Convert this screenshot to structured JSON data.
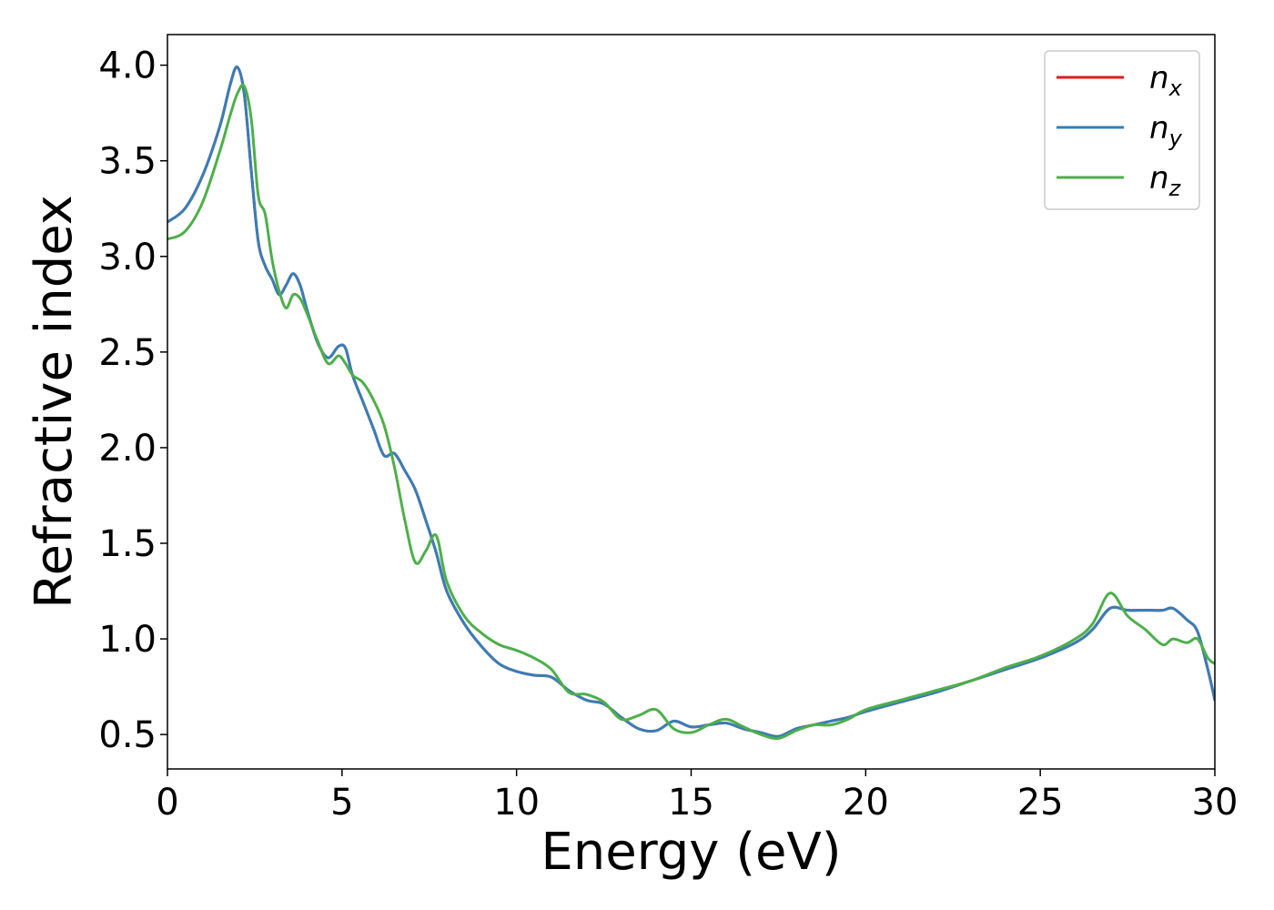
{
  "chart_data": {
    "type": "line",
    "xlabel": "Energy (eV)",
    "ylabel": "Refractive index",
    "xlim": [
      0,
      30
    ],
    "ylim": [
      0.32,
      4.16
    ],
    "xticks": [
      0,
      5,
      10,
      15,
      20,
      25,
      30
    ],
    "xtick_labels": [
      "0",
      "5",
      "10",
      "15",
      "20",
      "25",
      "30"
    ],
    "yticks": [
      0.5,
      1.0,
      1.5,
      2.0,
      2.5,
      3.0,
      3.5,
      4.0
    ],
    "ytick_labels": [
      "0.5",
      "1.0",
      "1.5",
      "2.0",
      "2.5",
      "3.0",
      "3.5",
      "4.0"
    ],
    "grid": false,
    "legend_position": "top-right",
    "series": [
      {
        "name": "n",
        "sub": "x",
        "color": "#e41a1c",
        "x": [
          0,
          0.5,
          1.0,
          1.5,
          1.8,
          2.0,
          2.2,
          2.4,
          2.6,
          2.8,
          3.0,
          3.2,
          3.4,
          3.6,
          3.8,
          4.0,
          4.3,
          4.6,
          4.9,
          5.1,
          5.3,
          5.6,
          5.9,
          6.2,
          6.5,
          6.8,
          7.1,
          7.4,
          7.7,
          8.0,
          8.5,
          9.0,
          9.5,
          10.0,
          10.5,
          11.0,
          11.5,
          12.0,
          12.5,
          13.0,
          13.5,
          14.0,
          14.5,
          15.0,
          15.5,
          16.0,
          16.5,
          17.0,
          17.5,
          18.0,
          18.5,
          19.0,
          19.5,
          20.0,
          21.0,
          22.0,
          23.0,
          24.0,
          25.0,
          26.0,
          26.5,
          27.0,
          27.5,
          28.0,
          28.5,
          28.8,
          29.2,
          29.5,
          29.8,
          30.0
        ],
        "y": [
          3.18,
          3.25,
          3.42,
          3.68,
          3.9,
          3.99,
          3.85,
          3.45,
          3.08,
          2.95,
          2.88,
          2.8,
          2.85,
          2.91,
          2.85,
          2.72,
          2.55,
          2.47,
          2.53,
          2.52,
          2.38,
          2.24,
          2.1,
          1.96,
          1.97,
          1.88,
          1.78,
          1.62,
          1.45,
          1.25,
          1.08,
          0.96,
          0.87,
          0.83,
          0.81,
          0.8,
          0.73,
          0.68,
          0.66,
          0.59,
          0.53,
          0.52,
          0.57,
          0.54,
          0.55,
          0.56,
          0.53,
          0.51,
          0.49,
          0.53,
          0.55,
          0.57,
          0.59,
          0.62,
          0.67,
          0.72,
          0.78,
          0.84,
          0.9,
          0.98,
          1.05,
          1.16,
          1.15,
          1.15,
          1.15,
          1.16,
          1.1,
          1.04,
          0.84,
          0.68
        ]
      },
      {
        "name": "n",
        "sub": "y",
        "color": "#377eb8",
        "x": [
          0,
          0.5,
          1.0,
          1.5,
          1.8,
          2.0,
          2.2,
          2.4,
          2.6,
          2.8,
          3.0,
          3.2,
          3.4,
          3.6,
          3.8,
          4.0,
          4.3,
          4.6,
          4.9,
          5.1,
          5.3,
          5.6,
          5.9,
          6.2,
          6.5,
          6.8,
          7.1,
          7.4,
          7.7,
          8.0,
          8.5,
          9.0,
          9.5,
          10.0,
          10.5,
          11.0,
          11.5,
          12.0,
          12.5,
          13.0,
          13.5,
          14.0,
          14.5,
          15.0,
          15.5,
          16.0,
          16.5,
          17.0,
          17.5,
          18.0,
          18.5,
          19.0,
          19.5,
          20.0,
          21.0,
          22.0,
          23.0,
          24.0,
          25.0,
          26.0,
          26.5,
          27.0,
          27.5,
          28.0,
          28.5,
          28.8,
          29.2,
          29.5,
          29.8,
          30.0
        ],
        "y": [
          3.18,
          3.25,
          3.42,
          3.68,
          3.9,
          3.99,
          3.85,
          3.45,
          3.08,
          2.95,
          2.88,
          2.8,
          2.85,
          2.91,
          2.85,
          2.72,
          2.55,
          2.47,
          2.53,
          2.52,
          2.38,
          2.24,
          2.1,
          1.96,
          1.97,
          1.88,
          1.78,
          1.62,
          1.45,
          1.25,
          1.08,
          0.96,
          0.87,
          0.83,
          0.81,
          0.8,
          0.73,
          0.68,
          0.66,
          0.59,
          0.53,
          0.52,
          0.57,
          0.54,
          0.55,
          0.56,
          0.53,
          0.51,
          0.49,
          0.53,
          0.55,
          0.57,
          0.59,
          0.62,
          0.67,
          0.72,
          0.78,
          0.84,
          0.9,
          0.98,
          1.05,
          1.16,
          1.15,
          1.15,
          1.15,
          1.16,
          1.1,
          1.04,
          0.84,
          0.68
        ]
      },
      {
        "name": "n",
        "sub": "z",
        "color": "#4daf4a",
        "x": [
          0,
          0.5,
          1.0,
          1.5,
          1.8,
          2.0,
          2.2,
          2.4,
          2.6,
          2.8,
          3.0,
          3.2,
          3.4,
          3.6,
          3.8,
          4.0,
          4.3,
          4.6,
          4.9,
          5.1,
          5.3,
          5.6,
          5.9,
          6.2,
          6.5,
          6.8,
          7.1,
          7.4,
          7.7,
          8.0,
          8.5,
          9.0,
          9.5,
          10.0,
          10.5,
          11.0,
          11.5,
          12.0,
          12.5,
          13.0,
          13.5,
          14.0,
          14.5,
          15.0,
          15.5,
          16.0,
          16.5,
          17.0,
          17.5,
          18.0,
          18.5,
          19.0,
          19.5,
          20.0,
          21.0,
          22.0,
          23.0,
          24.0,
          25.0,
          26.0,
          26.5,
          27.0,
          27.5,
          28.0,
          28.5,
          28.8,
          29.2,
          29.5,
          29.8,
          30.0
        ],
        "y": [
          3.09,
          3.13,
          3.28,
          3.55,
          3.74,
          3.85,
          3.89,
          3.72,
          3.32,
          3.22,
          2.98,
          2.82,
          2.73,
          2.8,
          2.78,
          2.7,
          2.56,
          2.44,
          2.48,
          2.44,
          2.38,
          2.34,
          2.25,
          2.12,
          1.9,
          1.62,
          1.4,
          1.46,
          1.54,
          1.3,
          1.12,
          1.03,
          0.97,
          0.94,
          0.9,
          0.84,
          0.72,
          0.71,
          0.67,
          0.58,
          0.6,
          0.63,
          0.53,
          0.51,
          0.55,
          0.58,
          0.54,
          0.5,
          0.48,
          0.52,
          0.55,
          0.55,
          0.58,
          0.63,
          0.68,
          0.73,
          0.78,
          0.85,
          0.91,
          1.0,
          1.08,
          1.24,
          1.12,
          1.05,
          0.97,
          1.0,
          0.98,
          1.0,
          0.9,
          0.87
        ]
      }
    ]
  }
}
